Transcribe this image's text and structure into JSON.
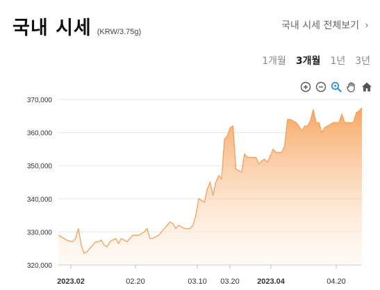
{
  "header": {
    "title": "국내 시세",
    "unit": "(KRW/3.75g)"
  },
  "more_link": {
    "label": "국내 시세 전체보기"
  },
  "tabs": [
    {
      "label": "1개월",
      "active": false
    },
    {
      "label": "3개월",
      "active": true
    },
    {
      "label": "1년",
      "active": false
    },
    {
      "label": "3년",
      "active": false
    }
  ],
  "toolbar": [
    "zoom-in-icon",
    "zoom-out-icon",
    "zoom-select-icon",
    "pan-hand-icon",
    "home-reset-icon"
  ],
  "colors": {
    "line": "#f0a15a",
    "fill_top": "#f7a25a",
    "fill_bottom": "#fff1e4",
    "zoom_accent": "#2a8fd6"
  },
  "chart_data": {
    "type": "area",
    "title": "",
    "xlabel": "",
    "ylabel": "",
    "ylim": [
      320000,
      370000
    ],
    "yticks": [
      320000,
      330000,
      340000,
      350000,
      360000,
      370000
    ],
    "ytick_labels": [
      "320,000",
      "330,000",
      "340,000",
      "350,000",
      "360,000",
      "370,000"
    ],
    "xticks": [
      {
        "label": "2023.02",
        "bold": true
      },
      {
        "label": "02.20",
        "bold": false
      },
      {
        "label": "03.10",
        "bold": false
      },
      {
        "label": "03.20",
        "bold": false
      },
      {
        "label": "2023.04",
        "bold": true
      },
      {
        "label": "04.20",
        "bold": false
      }
    ],
    "series": [
      {
        "values": [
          329000,
          328500,
          328000,
          327500,
          327200,
          327000,
          328000,
          331000,
          326000,
          323500,
          324000,
          325000,
          326000,
          327000,
          327000,
          327500,
          326000,
          325500,
          327000,
          327500,
          328000,
          326500,
          328000,
          327500,
          327000,
          328000,
          329000,
          329000,
          329000,
          329500,
          330000,
          331000,
          328000,
          328000,
          328500,
          329000,
          330000,
          331000,
          332000,
          333000,
          332500,
          331000,
          332000,
          331500,
          331000,
          331000,
          331000,
          332000,
          335000,
          340000,
          339500,
          339000,
          343000,
          345000,
          341000,
          345000,
          347000,
          346000,
          358000,
          359000,
          361500,
          362000,
          349000,
          348500,
          348000,
          353500,
          352500,
          352500,
          352500,
          352500,
          350500,
          351500,
          352000,
          351000,
          353000,
          355000,
          354000,
          354000,
          354000,
          356000,
          364000,
          364000,
          363500,
          363000,
          362000,
          360500,
          362000,
          362000,
          363500,
          367000,
          363000,
          363000,
          360000,
          361500,
          362000,
          362500,
          363000,
          363000,
          363000,
          365500,
          363000,
          363000,
          363000,
          363000,
          366000,
          366500,
          367500
        ]
      }
    ]
  }
}
